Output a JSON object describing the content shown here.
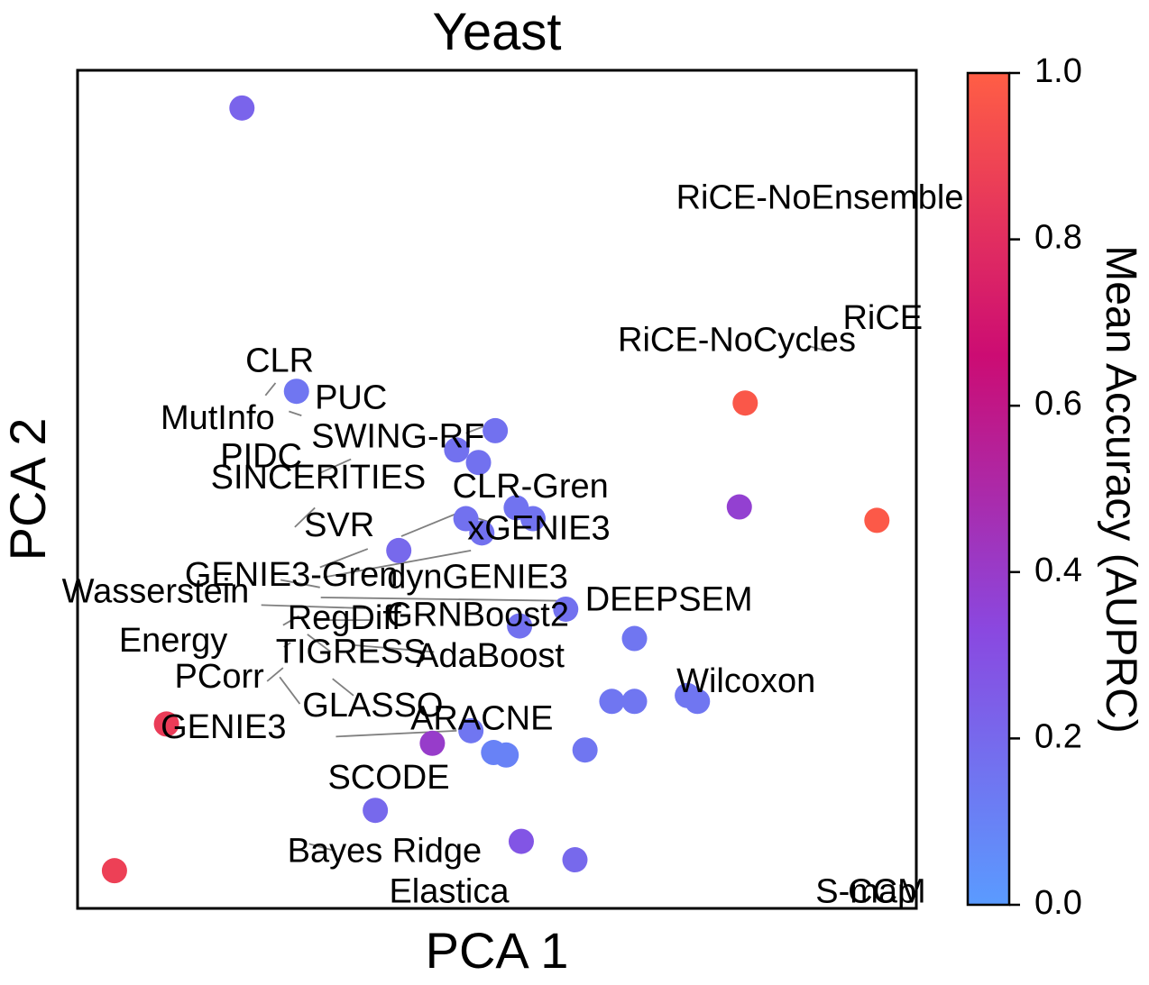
{
  "chart_data": {
    "type": "scatter",
    "title": "Yeast",
    "xlabel": "PCA 1",
    "ylabel": "PCA 2",
    "xlim": [
      0,
      1
    ],
    "ylim": [
      0,
      1
    ],
    "x_ticks_shown": false,
    "y_ticks_shown": false,
    "grid": false,
    "colorbar": {
      "label": "Mean Accuracy (AUPRC)",
      "range": [
        0.0,
        1.0
      ],
      "ticks": [
        "0.0",
        "0.2",
        "0.4",
        "0.6",
        "0.8",
        "1.0"
      ],
      "colors": [
        "#5a9bff",
        "#8a48e0",
        "#cc0c73",
        "#ff5e45"
      ]
    },
    "points": [
      {
        "x": 0.196,
        "y": 0.955,
        "value": 0.22
      },
      {
        "x": 0.261,
        "y": 0.617,
        "value": 0.15
      },
      {
        "x": 0.498,
        "y": 0.57,
        "value": 0.17
      },
      {
        "x": 0.452,
        "y": 0.547,
        "value": 0.17
      },
      {
        "x": 0.478,
        "y": 0.532,
        "value": 0.17
      },
      {
        "x": 0.523,
        "y": 0.478,
        "value": 0.16
      },
      {
        "x": 0.543,
        "y": 0.465,
        "value": 0.16
      },
      {
        "x": 0.463,
        "y": 0.465,
        "value": 0.17
      },
      {
        "x": 0.482,
        "y": 0.448,
        "value": 0.17
      },
      {
        "x": 0.383,
        "y": 0.427,
        "value": 0.2
      },
      {
        "x": 0.582,
        "y": 0.357,
        "value": 0.17
      },
      {
        "x": 0.527,
        "y": 0.337,
        "value": 0.17
      },
      {
        "x": 0.664,
        "y": 0.322,
        "value": 0.15
      },
      {
        "x": 0.637,
        "y": 0.247,
        "value": 0.15
      },
      {
        "x": 0.664,
        "y": 0.247,
        "value": 0.15
      },
      {
        "x": 0.727,
        "y": 0.254,
        "value": 0.15
      },
      {
        "x": 0.739,
        "y": 0.247,
        "value": 0.15
      },
      {
        "x": 0.469,
        "y": 0.212,
        "value": 0.15
      },
      {
        "x": 0.496,
        "y": 0.186,
        "value": 0.1
      },
      {
        "x": 0.511,
        "y": 0.183,
        "value": 0.1
      },
      {
        "x": 0.605,
        "y": 0.189,
        "value": 0.15
      },
      {
        "x": 0.423,
        "y": 0.197,
        "value": 0.4
      },
      {
        "x": 0.106,
        "y": 0.22,
        "value": 0.86
      },
      {
        "x": 0.355,
        "y": 0.117,
        "value": 0.2
      },
      {
        "x": 0.529,
        "y": 0.08,
        "value": 0.28
      },
      {
        "x": 0.593,
        "y": 0.058,
        "value": 0.2
      },
      {
        "x": 0.044,
        "y": 0.045,
        "value": 0.88
      },
      {
        "x": 0.796,
        "y": 0.603,
        "value": 0.97
      },
      {
        "x": 0.789,
        "y": 0.479,
        "value": 0.38
      },
      {
        "x": 0.953,
        "y": 0.463,
        "value": 0.98
      }
    ],
    "labels": [
      {
        "text": "RiCE-NoEnsemble",
        "x": 0.885,
        "y": 0.846
      },
      {
        "text": "RiCE",
        "x": 0.96,
        "y": 0.702
      },
      {
        "text": "RiCE-NoCycles",
        "x": 0.786,
        "y": 0.676
      },
      {
        "text": "CLR",
        "x": 0.241,
        "y": 0.651
      },
      {
        "text": "PUC",
        "x": 0.326,
        "y": 0.607
      },
      {
        "text": "MutInfo",
        "x": 0.167,
        "y": 0.583
      },
      {
        "text": "SWING-RF",
        "x": 0.382,
        "y": 0.561
      },
      {
        "text": "PIDC",
        "x": 0.219,
        "y": 0.537
      },
      {
        "text": "SINCERITIES",
        "x": 0.287,
        "y": 0.512
      },
      {
        "text": "CLR-Gren",
        "x": 0.54,
        "y": 0.501
      },
      {
        "text": "SVR",
        "x": 0.312,
        "y": 0.455
      },
      {
        "text": "xGENIE3",
        "x": 0.55,
        "y": 0.451
      },
      {
        "text": "GENIE3-Gren",
        "x": 0.255,
        "y": 0.396
      },
      {
        "text": "dynGENIE3",
        "x": 0.477,
        "y": 0.393
      },
      {
        "text": "Wasserstein",
        "x": 0.093,
        "y": 0.376
      },
      {
        "text": "DEEPSEM",
        "x": 0.705,
        "y": 0.366
      },
      {
        "text": "GRNBoost2",
        "x": 0.477,
        "y": 0.348
      },
      {
        "text": "RegDiff",
        "x": 0.318,
        "y": 0.344
      },
      {
        "text": "Energy",
        "x": 0.114,
        "y": 0.317
      },
      {
        "text": "TIGRESS",
        "x": 0.326,
        "y": 0.304
      },
      {
        "text": "AdaBoost",
        "x": 0.492,
        "y": 0.299
      },
      {
        "text": "PCorr",
        "x": 0.169,
        "y": 0.274
      },
      {
        "text": "Wilcoxon",
        "x": 0.797,
        "y": 0.269
      },
      {
        "text": "GLASSO",
        "x": 0.352,
        "y": 0.24
      },
      {
        "text": "ARACNE",
        "x": 0.482,
        "y": 0.224
      },
      {
        "text": "GENIE3",
        "x": 0.174,
        "y": 0.214
      },
      {
        "text": "SCODE",
        "x": 0.371,
        "y": 0.154
      },
      {
        "text": "Bayes Ridge",
        "x": 0.366,
        "y": 0.066
      },
      {
        "text": "Elastica",
        "x": 0.443,
        "y": 0.018
      },
      {
        "text": "S-map",
        "x": 0.94,
        "y": 0.018
      },
      {
        "text": "CCM",
        "x": 0.965,
        "y": 0.018
      }
    ],
    "leaders": [
      [
        0.224,
        0.612,
        0.236,
        0.627
      ],
      [
        0.267,
        0.588,
        0.252,
        0.593
      ],
      [
        0.484,
        0.575,
        0.463,
        0.567
      ],
      [
        0.29,
        0.52,
        0.326,
        0.536
      ],
      [
        0.459,
        0.474,
        0.386,
        0.444
      ],
      [
        0.259,
        0.455,
        0.283,
        0.478
      ],
      [
        0.469,
        0.468,
        0.491,
        0.461
      ],
      [
        0.289,
        0.407,
        0.346,
        0.429
      ],
      [
        0.293,
        0.395,
        0.469,
        0.427
      ],
      [
        0.242,
        0.392,
        0.289,
        0.383
      ],
      [
        0.29,
        0.371,
        0.579,
        0.367
      ],
      [
        0.219,
        0.362,
        0.343,
        0.358
      ],
      [
        0.245,
        0.338,
        0.264,
        0.349
      ],
      [
        0.282,
        0.344,
        0.351,
        0.344
      ],
      [
        0.331,
        0.314,
        0.425,
        0.306
      ],
      [
        0.246,
        0.312,
        0.254,
        0.317
      ],
      [
        0.274,
        0.327,
        0.302,
        0.306
      ],
      [
        0.245,
        0.287,
        0.226,
        0.271
      ],
      [
        0.265,
        0.244,
        0.241,
        0.276
      ],
      [
        0.304,
        0.274,
        0.329,
        0.254
      ],
      [
        0.308,
        0.205,
        0.452,
        0.212
      ],
      [
        0.276,
        0.077,
        0.306,
        0.069
      ],
      [
        0.871,
        0.671,
        0.891,
        0.666
      ]
    ]
  }
}
